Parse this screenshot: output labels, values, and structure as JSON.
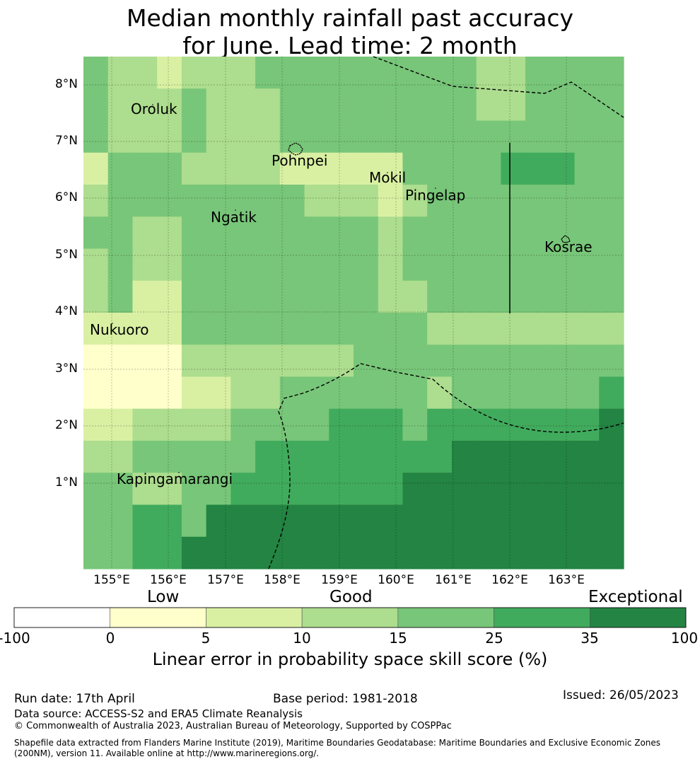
{
  "title": {
    "line1": "Median monthly rainfall past accuracy",
    "line2": "for June. Lead time: 2 month"
  },
  "map": {
    "lat_ticks": [
      "8°N",
      "7°N",
      "6°N",
      "5°N",
      "4°N",
      "3°N",
      "2°N",
      "1°N"
    ],
    "lon_ticks": [
      "155°E",
      "156°E",
      "157°E",
      "158°E",
      "159°E",
      "160°E",
      "161°E",
      "162°E",
      "163°E"
    ],
    "places": {
      "oroluk": "Oroluk",
      "pohnpei": "Pohnpei",
      "mokil": "Mokil",
      "pingelap": "Pingelap",
      "ngatik": "Ngatik",
      "kosrae": "Kosrae",
      "nukuoro": "Nukuoro",
      "kapingamarangi": "Kapingamarangi"
    },
    "grid_skill_classes": [
      [
        3,
        2,
        2,
        1,
        2,
        2,
        2,
        3,
        3,
        3,
        3,
        3,
        3,
        3,
        3,
        3,
        2,
        2,
        3,
        3,
        3,
        3
      ],
      [
        3,
        2,
        2,
        2,
        3,
        2,
        2,
        2,
        3,
        3,
        3,
        3,
        3,
        3,
        3,
        3,
        2,
        2,
        3,
        3,
        3,
        3
      ],
      [
        3,
        2,
        2,
        2,
        3,
        2,
        2,
        2,
        3,
        3,
        3,
        3,
        3,
        3,
        3,
        3,
        3,
        3,
        3,
        3,
        3,
        3
      ],
      [
        1,
        3,
        3,
        3,
        2,
        2,
        2,
        2,
        1,
        1,
        1,
        1,
        1,
        3,
        3,
        3,
        3,
        4,
        4,
        4,
        3,
        3
      ],
      [
        2,
        3,
        3,
        3,
        3,
        3,
        3,
        3,
        3,
        2,
        2,
        2,
        1,
        2,
        3,
        3,
        3,
        3,
        3,
        3,
        3,
        3
      ],
      [
        3,
        3,
        2,
        2,
        3,
        3,
        3,
        3,
        3,
        3,
        3,
        3,
        2,
        3,
        3,
        3,
        3,
        3,
        3,
        3,
        3,
        3
      ],
      [
        2,
        3,
        2,
        2,
        3,
        3,
        3,
        3,
        3,
        3,
        3,
        3,
        2,
        3,
        3,
        3,
        3,
        3,
        3,
        3,
        3,
        3
      ],
      [
        2,
        3,
        1,
        1,
        3,
        3,
        3,
        3,
        3,
        3,
        3,
        3,
        2,
        2,
        3,
        3,
        3,
        3,
        3,
        3,
        3,
        3
      ],
      [
        1,
        1,
        1,
        1,
        3,
        3,
        3,
        3,
        3,
        3,
        3,
        3,
        3,
        3,
        2,
        2,
        2,
        2,
        2,
        2,
        2,
        2
      ],
      [
        0,
        0,
        0,
        0,
        2,
        2,
        2,
        2,
        2,
        2,
        2,
        3,
        3,
        3,
        3,
        3,
        3,
        3,
        3,
        3,
        3,
        3
      ],
      [
        0,
        0,
        0,
        0,
        1,
        1,
        2,
        2,
        3,
        3,
        3,
        3,
        3,
        3,
        2,
        3,
        3,
        3,
        3,
        3,
        3,
        4
      ],
      [
        1,
        1,
        2,
        2,
        2,
        2,
        3,
        3,
        3,
        3,
        4,
        4,
        4,
        3,
        4,
        4,
        4,
        4,
        4,
        4,
        4,
        5
      ],
      [
        2,
        2,
        3,
        3,
        3,
        3,
        3,
        4,
        4,
        4,
        4,
        4,
        4,
        4,
        4,
        5,
        5,
        5,
        5,
        5,
        5,
        5
      ],
      [
        3,
        3,
        2,
        2,
        3,
        3,
        4,
        4,
        4,
        4,
        4,
        4,
        4,
        5,
        5,
        5,
        5,
        5,
        5,
        5,
        5,
        5
      ],
      [
        3,
        3,
        4,
        4,
        3,
        5,
        5,
        5,
        5,
        5,
        5,
        5,
        5,
        5,
        5,
        5,
        5,
        5,
        5,
        5,
        5,
        5
      ],
      [
        3,
        3,
        4,
        4,
        5,
        5,
        5,
        5,
        5,
        5,
        5,
        5,
        5,
        5,
        5,
        5,
        5,
        5,
        5,
        5,
        5,
        5
      ]
    ]
  },
  "colorbar": {
    "category_labels": {
      "low": "Low",
      "good": "Good",
      "exceptional": "Exceptional"
    },
    "ticks": [
      "-100",
      "0",
      "5",
      "10",
      "15",
      "25",
      "35",
      "100"
    ],
    "colors": [
      "#ffffff",
      "#ffffcc",
      "#d9f0a3",
      "#addd8e",
      "#78c679",
      "#41ab5d",
      "#238443"
    ],
    "title": "Linear error in probability space skill score (%)"
  },
  "footer": {
    "run_date": "Run date: 17th April",
    "base_period": "Base period: 1981-2018",
    "issued": "Issued: 26/05/2023",
    "data_source": "Data source: ACCESS-S2 and ERA5 Climate Reanalysis",
    "copyright": "© Commonwealth of Australia 2023, Australian Bureau of Meteorology, Supported by COSPPac",
    "shapefile": "Shapefile data extracted from Flanders Marine Institute (2019), Maritime Boundaries Geodatabase: Maritime Boundaries and Exclusive Economic Zones (200NM), version 11. Available online at http://www.marineregions.org/."
  }
}
